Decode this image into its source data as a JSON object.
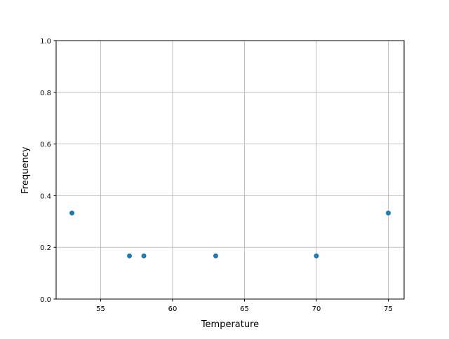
{
  "chart_data": {
    "type": "scatter",
    "title": "",
    "xlabel": "Temperature",
    "ylabel": "Frequency",
    "xlim": [
      51.9,
      76.1
    ],
    "ylim": [
      0,
      1.0
    ],
    "x_ticks": [
      55,
      60,
      65,
      70,
      75
    ],
    "y_ticks": [
      "0.0",
      "0.2",
      "0.4",
      "0.6",
      "0.8",
      "1.0"
    ],
    "grid": true,
    "color": "#1f77b4",
    "points": [
      {
        "x": 53,
        "y": 0.333
      },
      {
        "x": 57,
        "y": 0.167
      },
      {
        "x": 58,
        "y": 0.167
      },
      {
        "x": 63,
        "y": 0.167
      },
      {
        "x": 70,
        "y": 0.167
      },
      {
        "x": 75,
        "y": 0.333
      }
    ]
  }
}
